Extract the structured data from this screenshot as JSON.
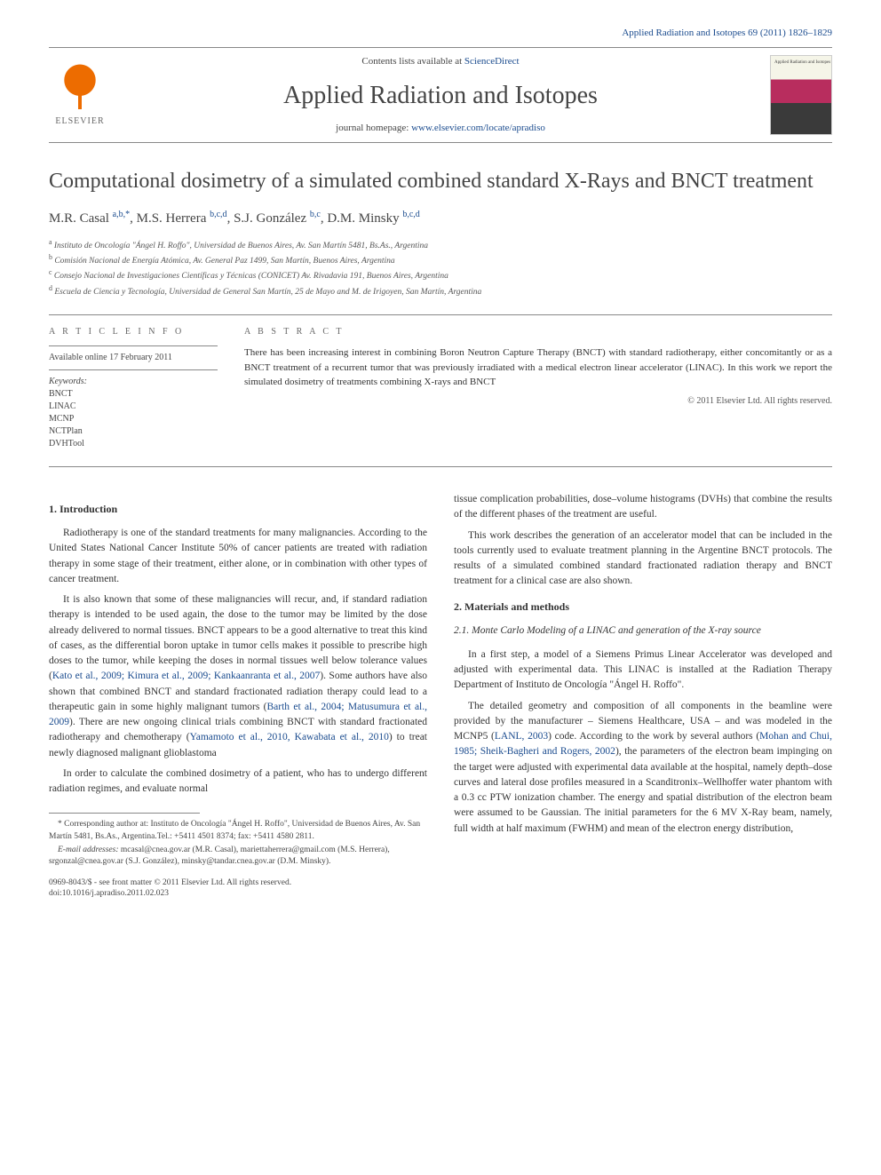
{
  "header": {
    "citation": "Applied Radiation and Isotopes 69 (2011) 1826–1829",
    "contents_text": "Contents lists available at ",
    "contents_link": "ScienceDirect",
    "journal_name": "Applied Radiation and Isotopes",
    "homepage_text": "journal homepage: ",
    "homepage_link": "www.elsevier.com/locate/apradiso",
    "elsevier_label": "ELSEVIER",
    "cover_label": "Applied Radiation and Isotopes"
  },
  "article": {
    "title": "Computational dosimetry of a simulated combined standard X-Rays and BNCT treatment",
    "authors_html": "M.R. Casal <sup>a,b,*</sup>, M.S. Herrera <sup>b,c,d</sup>, S.J. González <sup>b,c</sup>, D.M. Minsky <sup>b,c,d</sup>",
    "affiliations": [
      "a Instituto de Oncología \"Ángel H. Roffo\", Universidad de Buenos Aires, Av. San Martín 5481, Bs.As., Argentina",
      "b Comisión Nacional de Energía Atómica, Av. General Paz 1499, San Martín, Buenos Aires, Argentina",
      "c Consejo Nacional de Investigaciones Científicas y Técnicas (CONICET) Av. Rivadavia 191, Buenos Aires, Argentina",
      "d Escuela de Ciencia y Tecnología, Universidad de General San Martín, 25 de Mayo and M. de Irigoyen, San Martín, Argentina"
    ]
  },
  "info": {
    "article_info_heading": "A R T I C L E  I N F O",
    "available": "Available online 17 February 2011",
    "keywords_label": "Keywords:",
    "keywords": [
      "BNCT",
      "LINAC",
      "MCNP",
      "NCTPlan",
      "DVHTool"
    ]
  },
  "abstract": {
    "heading": "A B S T R A C T",
    "text": "There has been increasing interest in combining Boron Neutron Capture Therapy (BNCT) with standard radiotherapy, either concomitantly or as a BNCT treatment of a recurrent tumor that was previously irradiated with a medical electron linear accelerator (LINAC). In this work we report the simulated dosimetry of treatments combining X-rays and BNCT",
    "copyright": "© 2011 Elsevier Ltd. All rights reserved."
  },
  "sections": {
    "s1_heading": "1.  Introduction",
    "s1_p1": "Radiotherapy is one of the standard treatments for many malignancies. According to the United States National Cancer Institute 50% of cancer patients are treated with radiation therapy in some stage of their treatment, either alone, or in combination with other types of cancer treatment.",
    "s1_p2": "It is also known that some of these malignancies will recur, and, if standard radiation therapy is intended to be used again, the dose to the tumor may be limited by the dose already delivered to normal tissues. BNCT appears to be a good alternative to treat this kind of cases, as the differential boron uptake in tumor cells makes it possible to prescribe high doses to the tumor, while keeping the doses in normal tissues well below tolerance values (Kato et al., 2009; Kimura et al., 2009; Kankaanranta et al., 2007). Some authors have also shown that combined BNCT and standard fractionated radiation therapy could lead to a therapeutic gain in some highly malignant tumors (Barth et al., 2004; Matusumura et al., 2009). There are new ongoing clinical trials combining BNCT with standard fractionated radiotherapy and chemotherapy (Yamamoto et al., 2010, Kawabata et al., 2010) to treat newly diagnosed malignant glioblastoma",
    "s1_p3": "In order to calculate the combined dosimetry of a patient, who has to undergo different radiation regimes, and evaluate normal",
    "col2_p1": "tissue complication probabilities, dose–volume histograms (DVHs) that combine the results of the different phases of the treatment are useful.",
    "col2_p2": "This work describes the generation of an accelerator model that can be included in the tools currently used to evaluate treatment planning in the Argentine BNCT protocols. The results of a simulated combined standard fractionated radiation therapy and BNCT treatment for a clinical case are also shown.",
    "s2_heading": "2.  Materials and methods",
    "s21_heading": "2.1.  Monte Carlo Modeling of a LINAC and generation of the X-ray source",
    "s21_p1": "In a first step, a model of a Siemens Primus Linear Accelerator was developed and adjusted with experimental data. This LINAC is installed at the Radiation Therapy Department of Instituto de Oncología \"Ángel H. Roffo\".",
    "s21_p2": "The detailed geometry and composition of all components in the beamline were provided by the manufacturer – Siemens Healthcare, USA – and was modeled in the MCNP5 (LANL, 2003) code. According to the work by several authors (Mohan and Chui, 1985; Sheik-Bagheri and Rogers, 2002), the parameters of the electron beam impinging on the target were adjusted with experimental data available at the hospital, namely depth–dose curves and lateral dose profiles measured in a Scanditronix–Wellhoffer water phantom with a 0.3 cc PTW ionization chamber. The energy and spatial distribution of the electron beam were assumed to be Gaussian. The initial parameters for the 6 MV X-Ray beam, namely, full width at half maximum (FWHM) and mean of the electron energy distribution,"
  },
  "footnotes": {
    "corr": "* Corresponding author at: Instituto de Oncología \"Ángel H. Roffo\", Universidad de Buenos Aires, Av. San Martín 5481, Bs.As., Argentina.Tel.: +5411 4501 8374; fax: +5411 4580 2811.",
    "emails_label": "E-mail addresses: ",
    "emails": "mcasal@cnea.gov.ar (M.R. Casal), mariettaherrera@gmail.com (M.S. Herrera), srgonzal@cnea.gov.ar (S.J. González), minsky@tandar.cnea.gov.ar (D.M. Minsky).",
    "issn": "0969-8043/$ - see front matter © 2011 Elsevier Ltd. All rights reserved.",
    "doi": "doi:10.1016/j.apradiso.2011.02.023"
  },
  "colors": {
    "link": "#1a4b8e",
    "text": "#333333",
    "elsevier_orange": "#ed6c00",
    "rule": "#888888"
  }
}
